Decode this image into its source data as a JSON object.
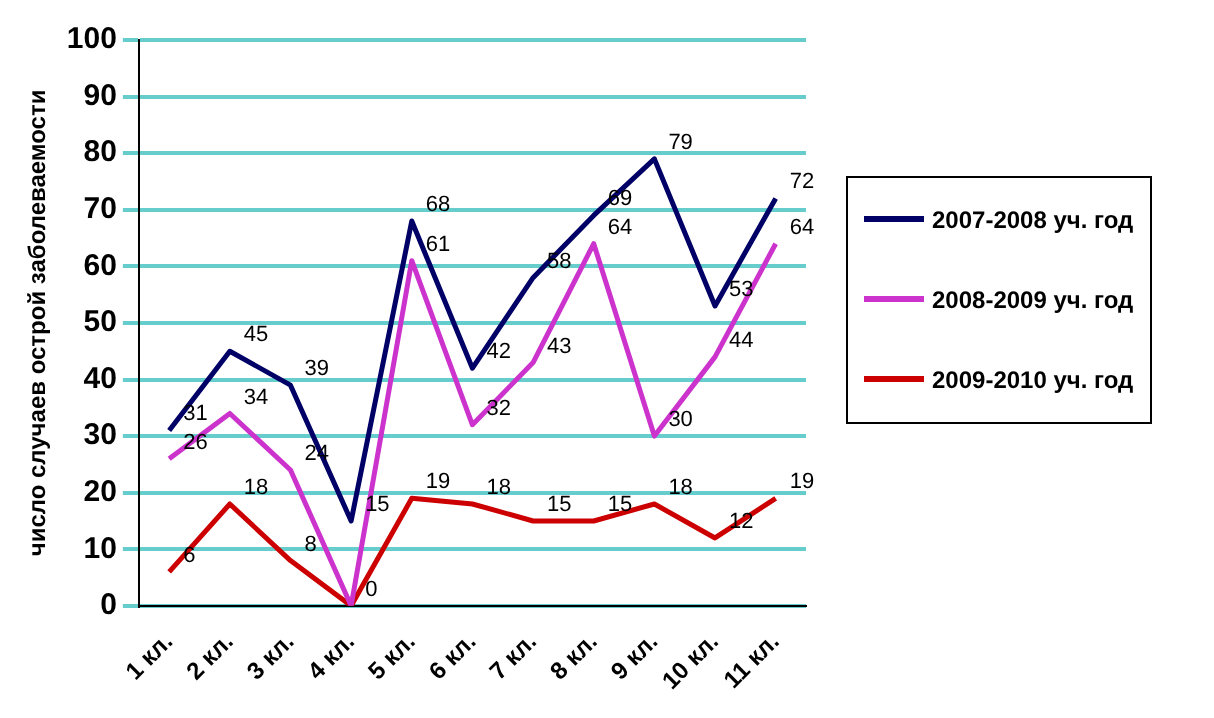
{
  "chart_data": {
    "type": "line",
    "ylabel": "число случаев острой заболеваемости",
    "categories": [
      "1 кл.",
      "2 кл.",
      "3 кл.",
      "4 кл.",
      "5 кл.",
      "6 кл.",
      "7 кл.",
      "8 кл.",
      "9 кл.",
      "10 кл.",
      "11 кл."
    ],
    "series": [
      {
        "name": "2007-2008 уч. год",
        "color": "#000066",
        "values": [
          31,
          45,
          39,
          15,
          68,
          42,
          58,
          69,
          79,
          53,
          72
        ],
        "value_labels": [
          "31",
          "45",
          "39",
          "15",
          "68",
          "42",
          "58",
          "69",
          "79",
          "53",
          "72"
        ]
      },
      {
        "name": "2008-2009 уч. год",
        "color": "#cc33cc",
        "values": [
          26,
          34,
          24,
          0,
          61,
          32,
          43,
          64,
          30,
          44,
          64
        ],
        "value_labels": [
          "26",
          "34",
          "24",
          null,
          "61",
          "32",
          "43",
          "64",
          "30",
          "44",
          "64"
        ]
      },
      {
        "name": "2009-2010 уч. год",
        "color": "#cc0000",
        "values": [
          6,
          18,
          8,
          0,
          19,
          18,
          15,
          15,
          18,
          12,
          19
        ],
        "value_labels": [
          "6",
          "18",
          "8",
          "0",
          "19",
          "18",
          "15",
          "15",
          "18",
          "12",
          "19"
        ]
      }
    ],
    "ylim": [
      0,
      100
    ],
    "yticks": [
      0,
      10,
      20,
      30,
      40,
      50,
      60,
      70,
      80,
      90,
      100
    ],
    "grid": "y",
    "legend": "right",
    "marker": "none"
  }
}
